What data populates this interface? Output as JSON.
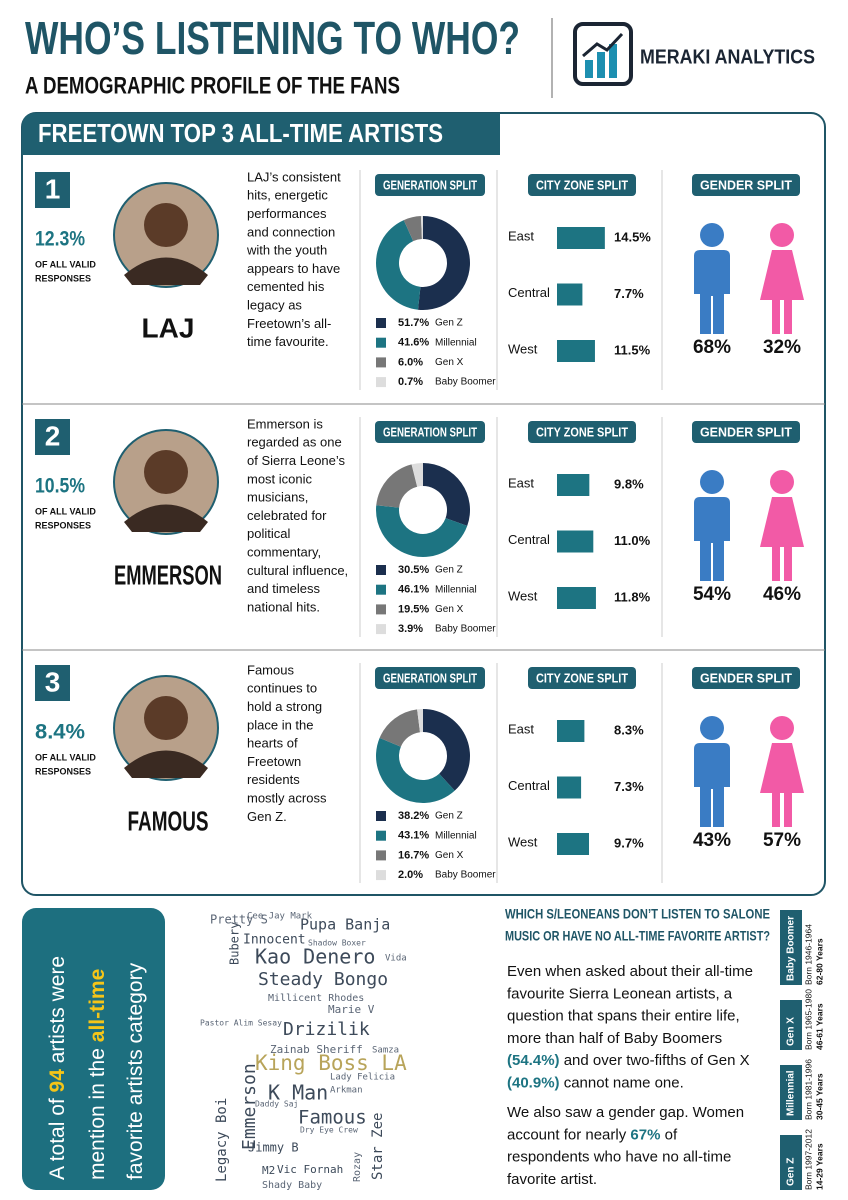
{
  "header": {
    "title": "WHO’S LISTENING TO WHO?",
    "subtitle": "A DEMOGRAPHIC PROFILE OF THE FANS",
    "brand": "MERAKI ANALYTICS"
  },
  "section_title": "FREETOWN TOP 3 ALL-TIME ARTISTS",
  "panel_labels": {
    "generation": "GENERATION SPLIT",
    "city": "CITY ZONE SPLIT",
    "gender": "GENDER SPLIT",
    "share_caption": [
      "OF ALL VALID",
      "RESPONSES"
    ]
  },
  "artists": [
    {
      "rank": "1",
      "share": "12.3%",
      "name": "LAJ",
      "description": [
        "LAJ’s consistent",
        "hits, energetic",
        "performances",
        "and connection",
        "with the youth",
        "appears to have",
        "cemented his",
        "legacy as",
        "Freetown’s all-",
        "time favourite."
      ],
      "generation": {
        "labels": [
          "Gen Z",
          "Millennial",
          "Gen X",
          "Baby Boomer"
        ],
        "values": [
          51.7,
          41.6,
          6.0,
          0.7
        ],
        "value_labels": [
          "51.7%",
          "41.6%",
          "6.0%",
          "0.7%"
        ],
        "colors": [
          "#1b2f4e",
          "#1d7482",
          "#777777",
          "#dddddd"
        ]
      },
      "city_zones": {
        "labels": [
          "East",
          "Central",
          "West"
        ],
        "values": [
          14.5,
          7.7,
          11.5
        ],
        "value_labels": [
          "14.5%",
          "7.7%",
          "11.5%"
        ],
        "color": "#1d7482"
      },
      "gender": {
        "values": [
          68,
          32
        ],
        "value_labels": [
          "68%",
          "32%"
        ],
        "colors": [
          "#3a7cc4",
          "#f25aa6"
        ]
      }
    },
    {
      "rank": "2",
      "share": "10.5%",
      "name": "EMMERSON",
      "description": [
        "Emmerson is",
        "regarded as one",
        "of Sierra Leone’s",
        "most iconic",
        "musicians,",
        "celebrated for",
        "political",
        "commentary,",
        "cultural influence,",
        "and timeless",
        "national hits."
      ],
      "generation": {
        "labels": [
          "Gen Z",
          "Millennial",
          "Gen X",
          "Baby Boomer"
        ],
        "values": [
          30.5,
          46.1,
          19.5,
          3.9
        ],
        "value_labels": [
          "30.5%",
          "46.1%",
          "19.5%",
          "3.9%"
        ],
        "colors": [
          "#1b2f4e",
          "#1d7482",
          "#777777",
          "#dddddd"
        ]
      },
      "city_zones": {
        "labels": [
          "East",
          "Central",
          "West"
        ],
        "values": [
          9.8,
          11.0,
          11.8
        ],
        "value_labels": [
          "9.8%",
          "11.0%",
          "11.8%"
        ],
        "color": "#1d7482"
      },
      "gender": {
        "values": [
          54,
          46
        ],
        "value_labels": [
          "54%",
          "46%"
        ],
        "colors": [
          "#3a7cc4",
          "#f25aa6"
        ]
      }
    },
    {
      "rank": "3",
      "share": "8.4%",
      "name": "FAMOUS",
      "description": [
        "Famous",
        "continues to",
        "hold a strong",
        "place in the",
        "hearts of",
        "Freetown",
        "residents",
        "mostly across",
        "Gen Z."
      ],
      "generation": {
        "labels": [
          "Gen Z",
          "Millennial",
          "Gen X",
          "Baby Boomer"
        ],
        "values": [
          38.2,
          43.1,
          16.7,
          2.0
        ],
        "value_labels": [
          "38.2%",
          "43.1%",
          "16.7%",
          "2.0%"
        ],
        "colors": [
          "#1b2f4e",
          "#1d7482",
          "#777777",
          "#dddddd"
        ]
      },
      "city_zones": {
        "labels": [
          "East",
          "Central",
          "West"
        ],
        "values": [
          8.3,
          7.3,
          9.7
        ],
        "value_labels": [
          "8.3%",
          "7.3%",
          "9.7%"
        ],
        "color": "#1d7482"
      },
      "gender": {
        "values": [
          43,
          57
        ],
        "value_labels": [
          "43%",
          "57%"
        ],
        "colors": [
          "#3a7cc4",
          "#f25aa6"
        ]
      }
    }
  ],
  "callout": {
    "lines": [
      [
        {
          "text": "A total of "
        },
        {
          "text": "94",
          "highlight": true
        },
        {
          "text": " artists were"
        }
      ],
      [
        {
          "text": "mention in the "
        },
        {
          "text": "all-time",
          "highlight": true
        }
      ],
      [
        {
          "text": "favorite artists category"
        }
      ]
    ]
  },
  "word_cloud": {
    "words": [
      "Kao Denero",
      "Steady Bongo",
      "Drizilik",
      "King Boss LA",
      "K Man",
      "Famous",
      "Emmerson",
      "Pupa Banja",
      "Innocent",
      "Bubery",
      "Zainab Sheriff",
      "Marie V",
      "Millicent Rhodes",
      "Legacy Boi",
      "Jimmy B",
      "Vic Fornah",
      "Star Zee",
      "M2",
      "Shady Baby",
      "Rozay",
      "Pretty S",
      "Cee Jay Mark",
      "Samza",
      "Lady Felicia",
      "Arkman",
      "Daddy Saj",
      "Dry Eye Crew",
      "Shadow Boxer",
      "Vida",
      "Pastor Alim Sesay"
    ]
  },
  "question": {
    "title_lines": [
      "WHICH S/LEONEANS DON’T LISTEN TO SALONE",
      "MUSIC OR HAVE NO ALL-TIME FAVORITE ARTIST?"
    ],
    "paragraphs": [
      [
        [
          {
            "text": "Even when asked about their all-time"
          }
        ],
        [
          {
            "text": "favourite Sierra Leonean artists, a"
          }
        ],
        [
          {
            "text": "question that spans their entire life,"
          }
        ],
        [
          {
            "text": "more than half of Baby Boomers"
          }
        ],
        [
          {
            "text": "(54.4%)",
            "highlight": true
          },
          {
            "text": " and over two-fifths of Gen X"
          }
        ],
        [
          {
            "text": "(40.9%)",
            "highlight": true
          },
          {
            "text": " cannot name one."
          }
        ]
      ],
      [
        [
          {
            "text": "We also saw a gender gap. Women"
          }
        ],
        [
          {
            "text": "account for nearly "
          },
          {
            "text": "67%",
            "highlight": true
          },
          {
            "text": " of"
          }
        ],
        [
          {
            "text": "respondents who have no all-time"
          }
        ],
        [
          {
            "text": "favorite artist."
          }
        ]
      ]
    ]
  },
  "generations_legend": [
    {
      "name": "Baby Boomer",
      "born": "Born 1946-1964",
      "age": "62-80 Years"
    },
    {
      "name": "Gen X",
      "born": "Born 1965-1980",
      "age": "46-61 Years"
    },
    {
      "name": "Millennial",
      "born": "Born 1981-1996",
      "age": "30-45 Years"
    },
    {
      "name": "Gen Z",
      "born": "Born 1997-2012",
      "age": "14-29 Years"
    }
  ]
}
